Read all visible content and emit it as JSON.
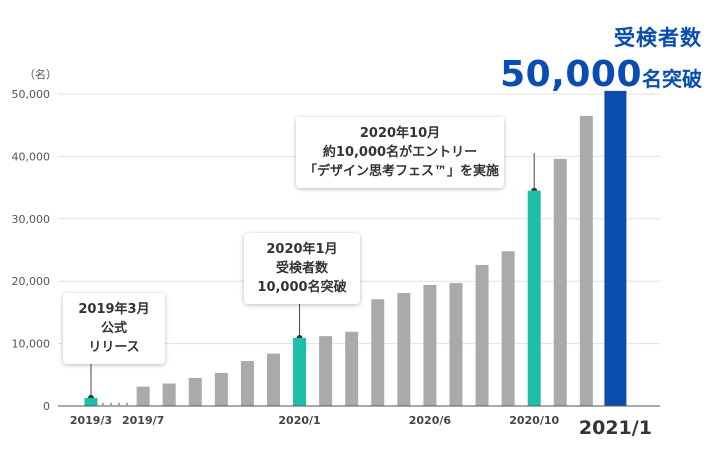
{
  "headline": {
    "line1": "受検者数",
    "number": "50,000",
    "suffix": "名突破"
  },
  "colors": {
    "bar_default": "#aaaaaa",
    "bar_highlight": "#1dbfa8",
    "bar_final": "#0a4db0",
    "axis": "#555555",
    "gridline": "#e2e2e2"
  },
  "callouts": [
    {
      "lines": [
        "2019年3月",
        "公式",
        "リリース"
      ]
    },
    {
      "lines": [
        "2020年1月",
        "受検者数",
        "10,000名突破"
      ]
    },
    {
      "lines": [
        "2020年10月",
        "約10,000名がエントリー",
        "「デザイン思考フェス™」を実施"
      ]
    }
  ],
  "chart_data": {
    "type": "bar",
    "y_unit_label": "（名）",
    "ylim": [
      0,
      50000
    ],
    "yticks": [
      "0",
      "10,000",
      "20,000",
      "30,000",
      "40,000",
      "50,000"
    ],
    "grid": true,
    "x_labels": [
      {
        "index": 0,
        "text": "2019/3"
      },
      {
        "index": 2,
        "text": "2019/7"
      },
      {
        "index": 8,
        "text": "2020/1"
      },
      {
        "index": 13,
        "text": "2020/6"
      },
      {
        "index": 17,
        "text": "2020/10"
      },
      {
        "index": 20,
        "text": "2021/1",
        "emphasis": true
      }
    ],
    "gap_after_index": 0,
    "values": [
      1300,
      null,
      3100,
      3600,
      4500,
      5300,
      7200,
      8400,
      10900,
      11200,
      11900,
      17100,
      18100,
      19400,
      19700,
      22600,
      24800,
      34500,
      39600,
      46500,
      50500
    ],
    "highlight_indices": [
      0,
      8,
      17
    ],
    "final_index": 20
  }
}
